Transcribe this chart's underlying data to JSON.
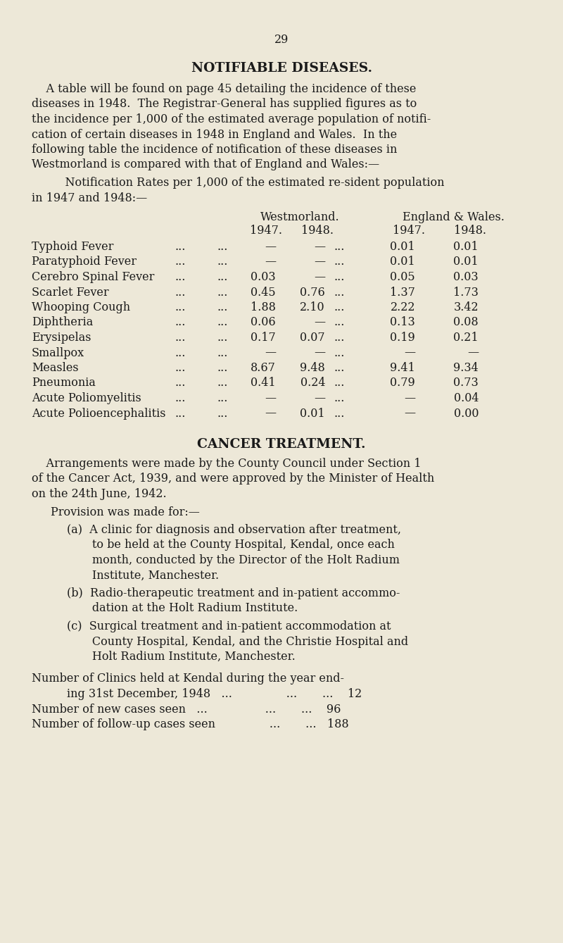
{
  "bg_color": "#ede8d8",
  "text_color": "#1a1a1a",
  "page_number": "29",
  "title": "NOTIFIABLE DISEASES.",
  "cancer_title": "CANCER TREATMENT.",
  "diseases": [
    {
      "name": "Typhoid Fever",
      "dots1": "...",
      "dots2": "...",
      "w1947": "—",
      "w1948": "—",
      "e1947": "0.01",
      "e1948": "0.01"
    },
    {
      "name": "Paratyphoid Fever",
      "dots1": "...",
      "dots2": "...",
      "w1947": "—",
      "w1948": "—",
      "e1947": "0.01",
      "e1948": "0.01"
    },
    {
      "name": "Cerebro Spinal Fever",
      "dots1": "...",
      "dots2": "...",
      "w1947": "0.03",
      "w1948": "—",
      "e1947": "0.05",
      "e1948": "0.03"
    },
    {
      "name": "Scarlet Fever",
      "dots1": "...",
      "dots2": "...",
      "w1947": "0.45",
      "w1948": "0.76",
      "e1947": "1.37",
      "e1948": "1.73"
    },
    {
      "name": "Whooping Cough",
      "dots1": "...",
      "dots2": "...",
      "w1947": "1.88",
      "w1948": "2.10",
      "e1947": "2.22",
      "e1948": "3.42"
    },
    {
      "name": "Diphtheria",
      "dots1": "...",
      "dots2": "...",
      "w1947": "0.06",
      "w1948": "—",
      "e1947": "0.13",
      "e1948": "0.08"
    },
    {
      "name": "Erysipelas",
      "dots1": "...",
      "dots2": "...",
      "w1947": "0.17",
      "w1948": "0.07",
      "e1947": "0.19",
      "e1948": "0.21"
    },
    {
      "name": "Smallpox",
      "dots1": "...",
      "dots2": "...",
      "w1947": "—",
      "w1948": "—",
      "e1947": "—",
      "e1948": "—"
    },
    {
      "name": "Measles",
      "dots1": "...",
      "dots2": "...",
      "w1947": "8.67",
      "w1948": "9.48",
      "e1947": "9.41",
      "e1948": "9.34"
    },
    {
      "name": "Pneumonia",
      "dots1": "...",
      "dots2": "...",
      "w1947": "0.41",
      "w1948": "0.24",
      "e1947": "0.79",
      "e1948": "0.73"
    },
    {
      "name": "Acute Poliomyelitis",
      "dots1": "...",
      "dots2": "...",
      "w1947": "—",
      "w1948": "—",
      "e1947": "—",
      "e1948": "0.04"
    },
    {
      "name": "Acute Polioencephalitis",
      "dots1": "...",
      "dots2": "...",
      "w1947": "—",
      "w1948": "0.01",
      "e1947": "—",
      "e1948": "0.00"
    }
  ],
  "intro_lines": [
    "    A table will be found on page 45 detailing the incidence of these",
    "diseases in 1948.  The Registrar-General has supplied figures as to",
    "the incidence per 1,000 of the estimated average population of notifi-",
    "cation of certain diseases in 1948 in England and Wales.  In the",
    "following table the incidence of notification of these diseases in",
    "Westmorland is compared with that of England and Wales:—"
  ],
  "notif_line1": "    Notification Rates per 1,000 of the estimated re­sident population",
  "notif_line2": "in 1947 and 1948:—",
  "cancer_intro_lines": [
    "    Arrangements were made by the County Council under Section 1",
    "of the Cancer Act, 1939, and were approved by the Minister of Health",
    "on the 24th June, 1942."
  ],
  "provision_header": "Provision was made for:—",
  "prov_a": [
    "(a)  A clinic for diagnosis and observation after treatment,",
    "       to be held at the County Hospital, Kendal, once each",
    "       month, conducted by the Director of the Holt Radium",
    "       Institute, Manchester."
  ],
  "prov_b": [
    "(b)  Radio-therapeutic treatment and in-patient accommo-",
    "       dation at the Holt Radium Institute."
  ],
  "prov_c": [
    "(c)  Surgical treatment and in-patient accommodation at",
    "       County Hospital, Kendal, and the Christie Hospital and",
    "       Holt Radium Institute, Manchester."
  ],
  "clinics_line1": "Number of Clinics held at Kendal during the year end-",
  "clinics_line2": "    ing 31st December, 1948   ...               ...       ...    12",
  "new_cases": "Number of new cases seen   ...                ...       ...    96",
  "followup": "Number of follow-up cases seen               ...       ...   188"
}
